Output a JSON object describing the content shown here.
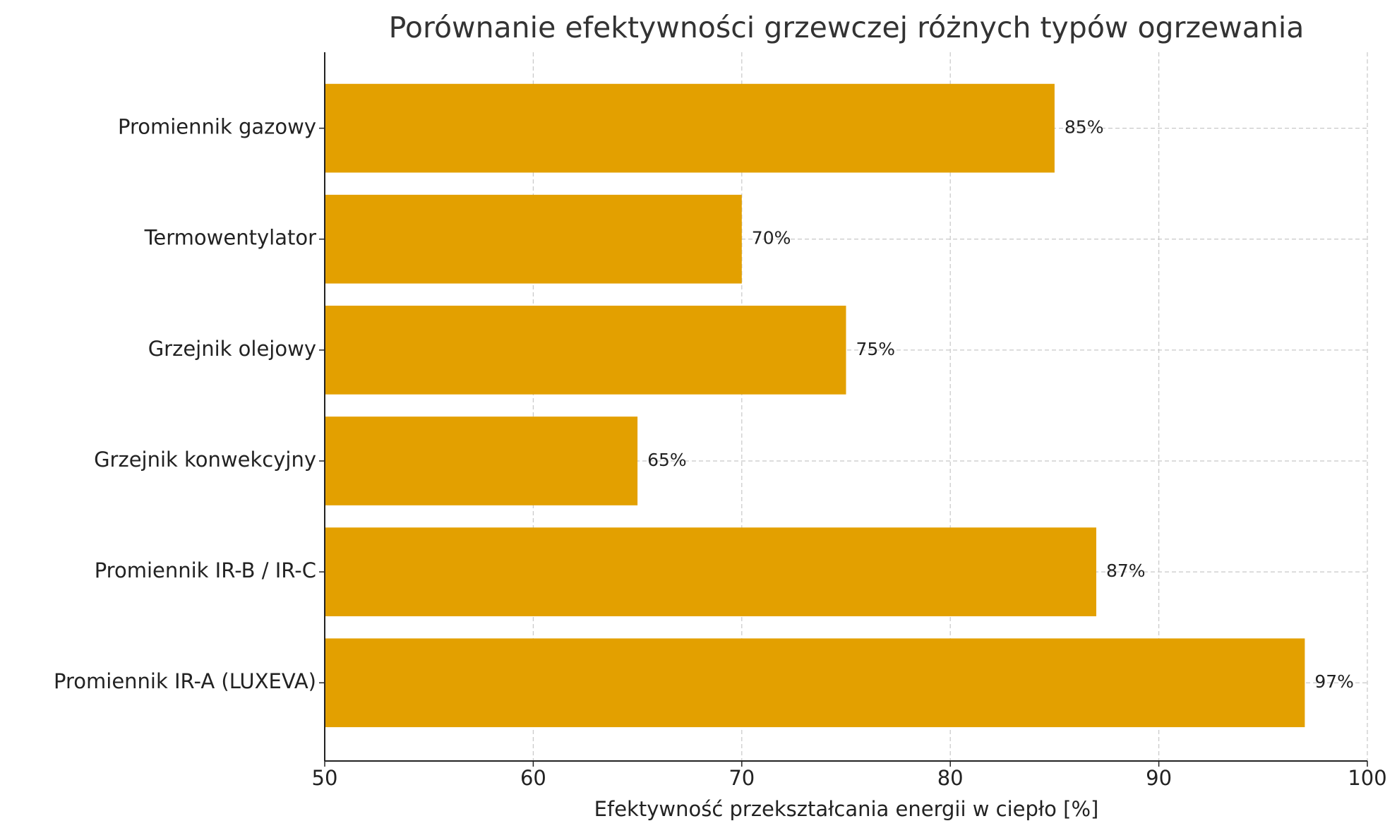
{
  "chart_data": {
    "type": "bar",
    "orientation": "horizontal",
    "title": "Porównanie efektywności grzewczej różnych typów ogrzewania",
    "x_label": "Efektywność przekształcania energii w ciepło [%]",
    "categories": [
      "Promiennik gazowy",
      "Termowentylator",
      "Grzejnik olejowy",
      "Grzejnik konwekcyjny",
      "Promiennik IR-B / IR-C",
      "Promiennik IR-A (LUXEVA)"
    ],
    "values": [
      85,
      70,
      75,
      65,
      87,
      97
    ],
    "value_labels": [
      "85%",
      "70%",
      "75%",
      "65%",
      "87%",
      "97%"
    ],
    "color": "#e3a000",
    "xlim": [
      50,
      100
    ],
    "xticks": [
      50,
      60,
      70,
      80,
      90,
      100
    ],
    "grid": true
  }
}
